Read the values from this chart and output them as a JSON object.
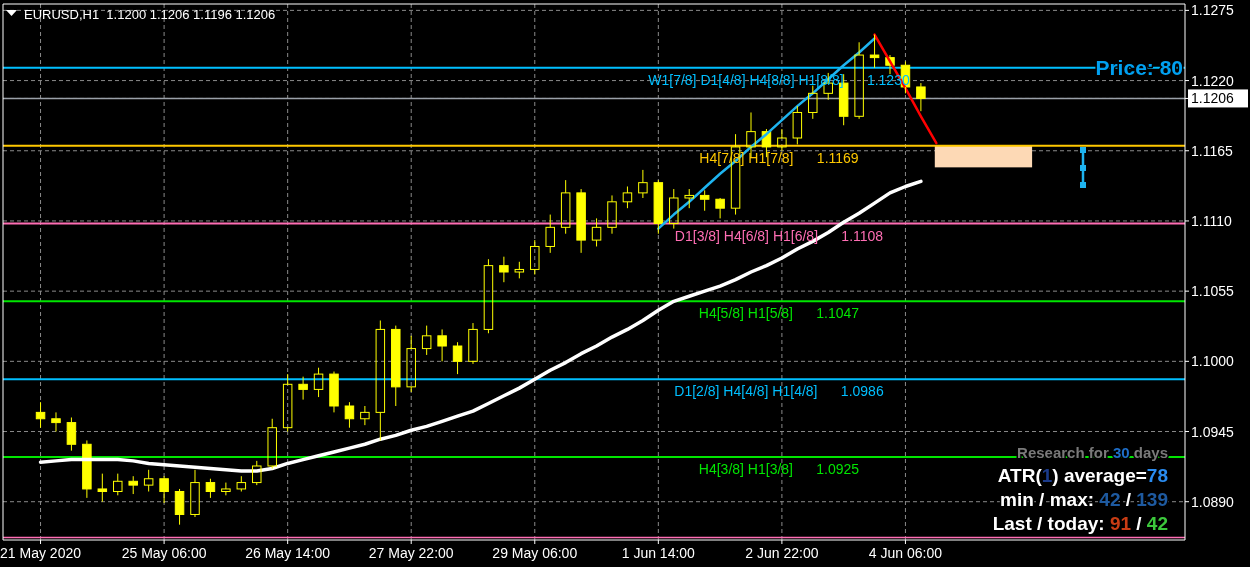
{
  "chart_data": {
    "type": "candlestick",
    "title": "EURUSD,H1  1.1200 1.1206 1.1196 1.1206",
    "color": "#ffff00",
    "categories": [
      "21 May 2020",
      null,
      null,
      null,
      null,
      null,
      null,
      null,
      "25 May 06:00",
      null,
      null,
      null,
      null,
      null,
      null,
      null,
      "26 May 14:00",
      null,
      null,
      null,
      null,
      null,
      null,
      null,
      "27 May 22:00",
      null,
      null,
      null,
      null,
      null,
      null,
      null,
      "29 May 06:00",
      null,
      null,
      null,
      null,
      null,
      null,
      null,
      "1 Jun 14:00",
      null,
      null,
      null,
      null,
      null,
      null,
      null,
      "2 Jun 22:00",
      null,
      null,
      null,
      null,
      null,
      null,
      null,
      "4 Jun 06:00",
      null,
      null,
      null,
      null,
      null,
      null,
      null,
      null,
      null,
      null,
      null,
      null,
      null,
      null,
      null,
      null,
      null,
      null
    ],
    "ohlc": [
      [
        1.096,
        1.0968,
        1.0948,
        1.0955
      ],
      [
        1.0955,
        1.096,
        1.0945,
        1.0952
      ],
      [
        1.0952,
        1.0956,
        1.093,
        1.0935
      ],
      [
        1.0935,
        1.0938,
        1.0893,
        1.09
      ],
      [
        1.09,
        1.0912,
        1.089,
        1.0898
      ],
      [
        1.0898,
        1.0912,
        1.0895,
        1.0906
      ],
      [
        1.0906,
        1.091,
        1.0896,
        1.0903
      ],
      [
        1.0903,
        1.0915,
        1.0898,
        1.0908
      ],
      [
        1.0908,
        1.091,
        1.0889,
        1.0898
      ],
      [
        1.0898,
        1.09,
        1.0872,
        1.088
      ],
      [
        1.088,
        1.0915,
        1.0878,
        1.0905
      ],
      [
        1.0905,
        1.0908,
        1.0893,
        1.0898
      ],
      [
        1.0898,
        1.0905,
        1.0895,
        1.09
      ],
      [
        1.09,
        1.091,
        1.0898,
        1.0905
      ],
      [
        1.0905,
        1.0922,
        1.0903,
        1.0918
      ],
      [
        1.0918,
        1.0955,
        1.0916,
        1.0948
      ],
      [
        1.0948,
        1.099,
        1.0945,
        1.0982
      ],
      [
        1.0982,
        1.0988,
        1.097,
        1.0978
      ],
      [
        1.0978,
        1.0995,
        1.0972,
        1.099
      ],
      [
        1.099,
        1.0992,
        1.096,
        1.0965
      ],
      [
        1.0965,
        1.0968,
        1.0948,
        1.0955
      ],
      [
        1.0955,
        1.0965,
        1.095,
        1.096
      ],
      [
        1.096,
        1.1032,
        1.0938,
        1.1025
      ],
      [
        1.1025,
        1.1028,
        1.0965,
        1.098
      ],
      [
        1.098,
        1.102,
        1.0976,
        1.101
      ],
      [
        1.101,
        1.1028,
        1.1005,
        1.102
      ],
      [
        1.102,
        1.1025,
        1.1,
        1.1012
      ],
      [
        1.1012,
        1.1015,
        1.099,
        1.1
      ],
      [
        1.1,
        1.103,
        1.0998,
        1.1025
      ],
      [
        1.1025,
        1.108,
        1.1022,
        1.1075
      ],
      [
        1.1075,
        1.1082,
        1.1062,
        1.107
      ],
      [
        1.107,
        1.1078,
        1.1065,
        1.1072
      ],
      [
        1.1072,
        1.1095,
        1.1068,
        1.109
      ],
      [
        1.109,
        1.1115,
        1.1085,
        1.1105
      ],
      [
        1.1105,
        1.1142,
        1.11,
        1.1132
      ],
      [
        1.1132,
        1.1135,
        1.1085,
        1.1095
      ],
      [
        1.1095,
        1.1112,
        1.109,
        1.1105
      ],
      [
        1.1105,
        1.113,
        1.11,
        1.1125
      ],
      [
        1.1125,
        1.1137,
        1.112,
        1.1132
      ],
      [
        1.1132,
        1.115,
        1.1128,
        1.114
      ],
      [
        1.114,
        1.1142,
        1.11,
        1.1108
      ],
      [
        1.1108,
        1.1135,
        1.1104,
        1.1128
      ],
      [
        1.1128,
        1.1135,
        1.112,
        1.113
      ],
      [
        1.113,
        1.1134,
        1.1118,
        1.1127
      ],
      [
        1.1127,
        1.1128,
        1.1112,
        1.112
      ],
      [
        1.112,
        1.1178,
        1.1115,
        1.1168
      ],
      [
        1.1168,
        1.1195,
        1.116,
        1.118
      ],
      [
        1.118,
        1.1182,
        1.116,
        1.1168
      ],
      [
        1.1168,
        1.1182,
        1.1165,
        1.1175
      ],
      [
        1.1175,
        1.12,
        1.117,
        1.1195
      ],
      [
        1.1195,
        1.1216,
        1.119,
        1.121
      ],
      [
        1.121,
        1.1226,
        1.1205,
        1.1218
      ],
      [
        1.1218,
        1.1225,
        1.1185,
        1.1192
      ],
      [
        1.1192,
        1.125,
        1.119,
        1.124
      ],
      [
        1.124,
        1.1256,
        1.123,
        1.1238
      ],
      [
        1.1238,
        1.124,
        1.1225,
        1.1232
      ],
      [
        1.1232,
        1.1235,
        1.121,
        1.1215
      ],
      [
        1.1215,
        1.1218,
        1.1196,
        1.1206
      ],
      null,
      null,
      null,
      null,
      null,
      null,
      null,
      null,
      null,
      null,
      null,
      null,
      null,
      null,
      null,
      null,
      null
    ],
    "series": [
      {
        "type": "line",
        "color": "#ffffff",
        "values": [
          1.0921,
          1.0922,
          1.0923,
          1.0923,
          1.0923,
          1.0923,
          1.0922,
          1.092,
          1.0919,
          1.0918,
          1.0917,
          1.0916,
          1.0915,
          1.0914,
          1.0914,
          1.0916,
          1.092,
          1.0923,
          1.0926,
          1.0929,
          1.0932,
          1.0935,
          1.0939,
          1.0942,
          1.0946,
          1.0949,
          1.0953,
          1.0957,
          1.0961,
          1.0967,
          1.0973,
          1.0979,
          1.0986,
          1.0993,
          1.0999,
          1.1006,
          1.1012,
          1.1019,
          1.1025,
          1.1032,
          1.104,
          1.1047,
          1.1051,
          1.1055,
          1.1059,
          1.1064,
          1.107,
          1.1075,
          1.1081,
          1.1088,
          1.1094,
          1.1101,
          1.1109,
          1.1116,
          1.1124,
          1.1132,
          1.1137,
          1.1141,
          null,
          null,
          null,
          null,
          null,
          null,
          null,
          null,
          null,
          null,
          null,
          null,
          null,
          null,
          null,
          null,
          null
        ]
      },
      {
        "type": "line",
        "color": "#1eb4f0",
        "values": [
          null,
          null,
          null,
          null,
          null,
          null,
          null,
          null,
          null,
          null,
          null,
          null,
          null,
          null,
          null,
          null,
          null,
          null,
          null,
          null,
          null,
          null,
          null,
          null,
          null,
          null,
          null,
          null,
          null,
          null,
          null,
          null,
          null,
          null,
          null,
          null,
          null,
          null,
          null,
          null,
          1.1104,
          1.1115,
          1.1125,
          1.1136,
          1.1147,
          1.1157,
          1.1168,
          1.1178,
          1.1189,
          1.12,
          1.121,
          1.1221,
          1.1232,
          1.1242,
          1.1253,
          null,
          null,
          null,
          null,
          null,
          null,
          null,
          null,
          null,
          null,
          null,
          null,
          null,
          null,
          null,
          null,
          null,
          null,
          null,
          null
        ]
      },
      {
        "type": "line",
        "color": "#ff0000",
        "values": [
          null,
          null,
          null,
          null,
          null,
          null,
          null,
          null,
          null,
          null,
          null,
          null,
          null,
          null,
          null,
          null,
          null,
          null,
          null,
          null,
          null,
          null,
          null,
          null,
          null,
          null,
          null,
          null,
          null,
          null,
          null,
          null,
          null,
          null,
          null,
          null,
          null,
          null,
          null,
          null,
          null,
          null,
          null,
          null,
          null,
          null,
          null,
          null,
          null,
          null,
          null,
          null,
          null,
          null,
          1.1256,
          1.1235,
          1.1214,
          1.1192,
          1.1171,
          null,
          null,
          null,
          null,
          null,
          null,
          null,
          null,
          null,
          null,
          null,
          null,
          null,
          null,
          null,
          null
        ]
      }
    ],
    "ylim": [
      1.086,
      1.128
    ],
    "yticks": [
      {
        "value": 1.1275,
        "label": "1.1275"
      },
      {
        "value": 1.122,
        "label": "1.1220"
      },
      {
        "value": 1.1206,
        "label": "1.1206"
      },
      {
        "value": 1.1165,
        "label": "1.1165"
      },
      {
        "value": 1.111,
        "label": "1.1110"
      },
      {
        "value": 1.1055,
        "label": "1.1055"
      },
      {
        "value": 1.1,
        "label": "1.1000"
      },
      {
        "value": 1.0945,
        "label": "1.0945"
      },
      {
        "value": 1.089,
        "label": "1.0890"
      }
    ],
    "grid": true,
    "ref_lines": [
      {
        "axis": "y",
        "value": 1.123,
        "label": "W1[7/8] D1[4/8] H4[8/8] H1[8/8]      1.1230",
        "color": "#00bfff"
      },
      {
        "axis": "y",
        "value": 1.1206,
        "color": "#9aa0a8"
      },
      {
        "axis": "y",
        "value": 1.1169,
        "label": "H4[7/8] H1[7/8]      1.1169",
        "color": "#ffc800"
      },
      {
        "axis": "y",
        "value": 1.1108,
        "label": "D1[3/8] H4[6/8] H1[6/8]      1.1108",
        "color": "#ff6eb4"
      },
      {
        "axis": "y",
        "value": 1.1047,
        "label": "H4[5/8] H1[5/8]      1.1047",
        "color": "#00e600"
      },
      {
        "axis": "y",
        "value": 1.0986,
        "label": "D1[2/8] H4[4/8] H1[4/8]      1.0986",
        "color": "#00bfff"
      },
      {
        "axis": "y",
        "value": 1.0925,
        "label": "H4[3/8] H1[3/8]      1.0925",
        "color": "#00e600"
      },
      {
        "axis": "y",
        "value": 1.0862,
        "color": "#ff6eb4"
      }
    ],
    "bands": [
      {
        "axis": "y",
        "from": 1.1152,
        "to": 1.1169,
        "color": "#fdd9b5"
      }
    ],
    "annotations": [
      "Price: 80",
      "Research for 30 days",
      "ATR(1) average=78",
      "min / max: 42 / 139",
      "Last / today: 91 / 42"
    ]
  }
}
